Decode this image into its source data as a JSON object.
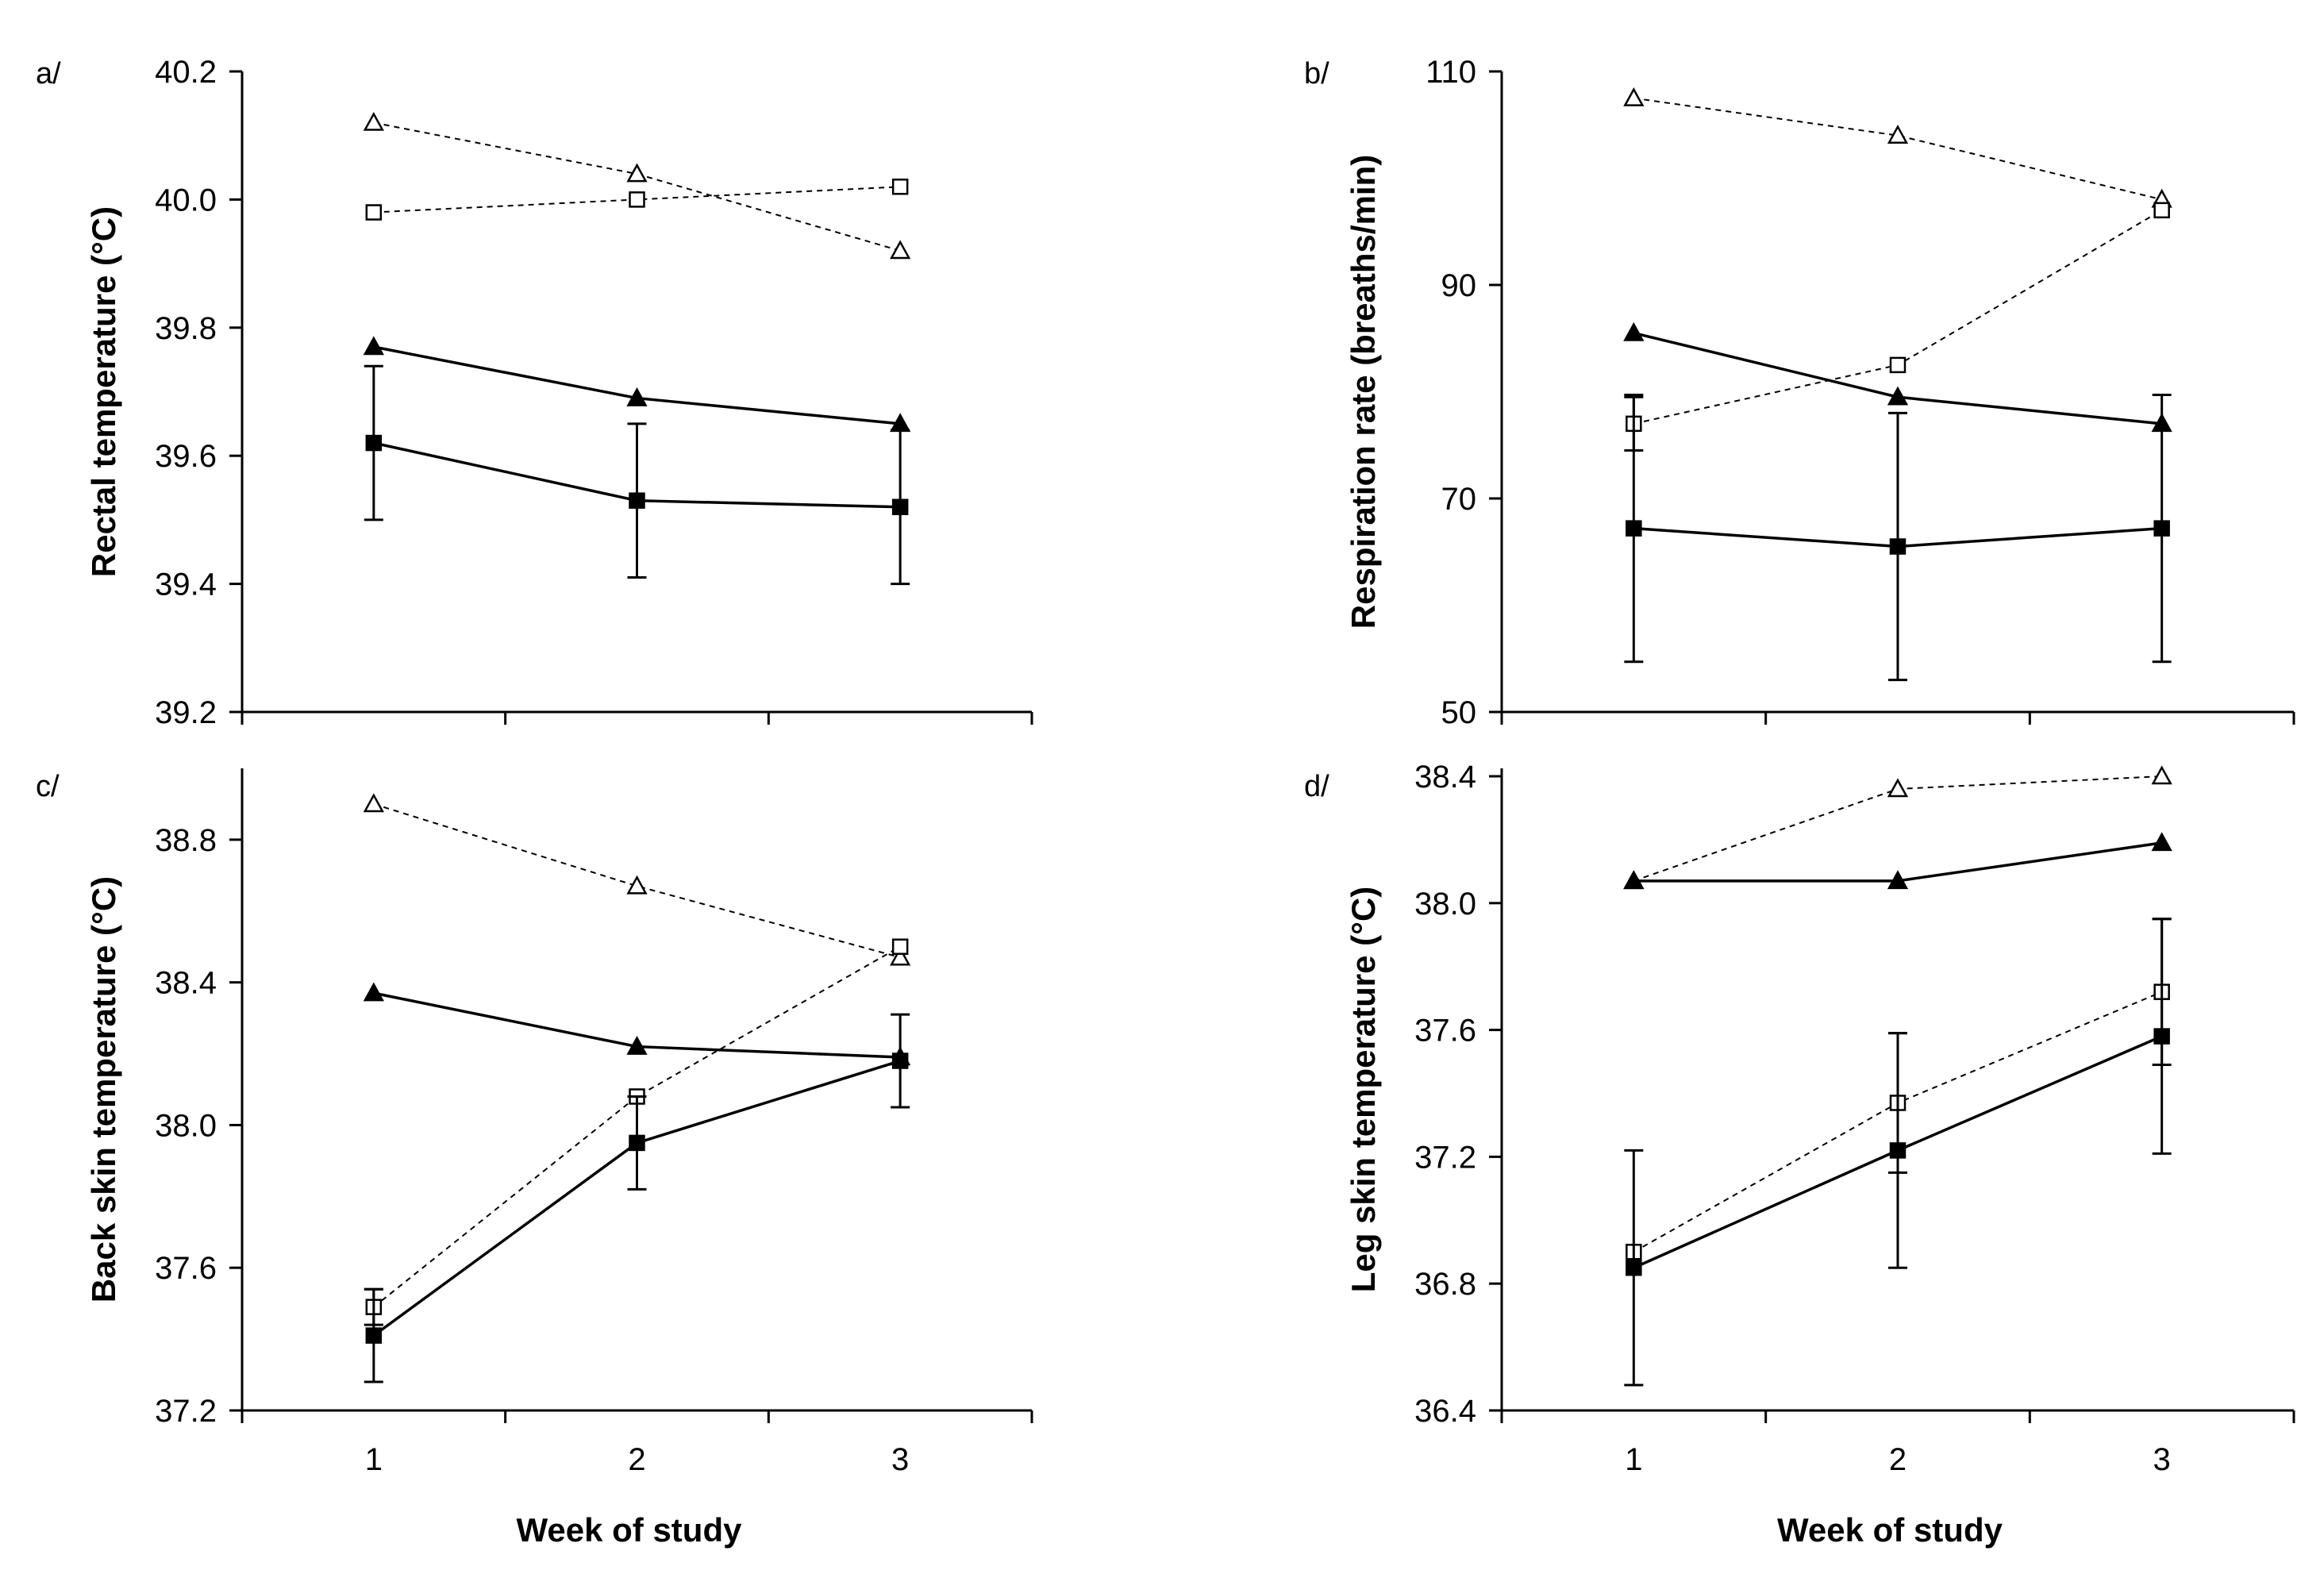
{
  "chart_data": [
    {
      "panel": "a/",
      "type": "line",
      "xlabel": "Week of study",
      "ylabel": "Rectal temperature (°C)",
      "categories": [
        "1",
        "2",
        "3"
      ],
      "ylim": [
        39.2,
        40.2
      ],
      "yticks": [
        "39.2",
        "39.4",
        "39.6",
        "39.8",
        "40.0",
        "40.2"
      ],
      "series": [
        {
          "name": "closed-triangle",
          "marker": "triangle",
          "filled": true,
          "style": "solid",
          "values": [
            39.77,
            39.69,
            39.65
          ]
        },
        {
          "name": "closed-square",
          "marker": "square",
          "filled": true,
          "style": "solid",
          "values": [
            39.62,
            39.53,
            39.52
          ],
          "error": [
            0.12,
            0.12,
            0.12
          ]
        },
        {
          "name": "open-triangle",
          "marker": "triangle",
          "filled": false,
          "style": "dashed",
          "values": [
            40.12,
            40.04,
            39.92
          ]
        },
        {
          "name": "open-square",
          "marker": "square",
          "filled": false,
          "style": "dashed",
          "values": [
            39.98,
            40.0,
            40.02
          ]
        }
      ]
    },
    {
      "panel": "b/",
      "type": "line",
      "xlabel": "Week of study",
      "ylabel": "Respiration rate (breaths/min)",
      "categories": [
        "1",
        "2",
        "3"
      ],
      "ylim": [
        50,
        110
      ],
      "yticks": [
        "50",
        "70",
        "90",
        "110"
      ],
      "series": [
        {
          "name": "closed-triangle",
          "marker": "triangle",
          "filled": true,
          "style": "solid",
          "values": [
            85.5,
            79.5,
            77.0
          ]
        },
        {
          "name": "closed-square",
          "marker": "square",
          "filled": true,
          "style": "solid",
          "values": [
            67.2,
            65.5,
            67.2
          ],
          "error": [
            12.5,
            12.5,
            12.5
          ]
        },
        {
          "name": "open-triangle",
          "marker": "triangle",
          "filled": false,
          "style": "dashed",
          "values": [
            107.5,
            104.0,
            98.0
          ]
        },
        {
          "name": "open-square",
          "marker": "square",
          "filled": false,
          "style": "dashed",
          "values": [
            77.0,
            82.5,
            97.0
          ],
          "error": [
            2.5,
            0,
            0
          ]
        }
      ]
    },
    {
      "panel": "c/",
      "type": "line",
      "xlabel": "Week of study",
      "ylabel": "Back skin temperature (°C)",
      "categories": [
        "1",
        "2",
        "3"
      ],
      "ylim": [
        37.2,
        39.0
      ],
      "yticks": [
        "37.2",
        "37.6",
        "38.0",
        "38.4",
        "38.8"
      ],
      "series": [
        {
          "name": "closed-triangle",
          "marker": "triangle",
          "filled": true,
          "style": "solid",
          "values": [
            38.37,
            38.22,
            38.19
          ]
        },
        {
          "name": "closed-square",
          "marker": "square",
          "filled": true,
          "style": "solid",
          "values": [
            37.41,
            37.95,
            38.18
          ],
          "error": [
            0.13,
            0.13,
            0.13
          ]
        },
        {
          "name": "open-triangle",
          "marker": "triangle",
          "filled": false,
          "style": "dashed",
          "values": [
            38.9,
            38.67,
            38.47
          ]
        },
        {
          "name": "open-square",
          "marker": "square",
          "filled": false,
          "style": "dashed",
          "values": [
            37.49,
            38.08,
            38.5
          ],
          "error": [
            0.05,
            0,
            0
          ]
        }
      ]
    },
    {
      "panel": "d/",
      "type": "line",
      "xlabel": "Week of study",
      "ylabel": "Leg skin temperature (°C)",
      "categories": [
        "1",
        "2",
        "3"
      ],
      "ylim": [
        36.4,
        38.4
      ],
      "yticks": [
        "36.4",
        "36.8",
        "37.2",
        "37.6",
        "38.0",
        "38.4"
      ],
      "series": [
        {
          "name": "closed-triangle",
          "marker": "triangle",
          "filled": true,
          "style": "solid",
          "values": [
            38.07,
            38.07,
            38.19
          ]
        },
        {
          "name": "closed-square",
          "marker": "square",
          "filled": true,
          "style": "solid",
          "values": [
            36.85,
            37.22,
            37.58
          ],
          "error": [
            0.37,
            0.37,
            0.37
          ]
        },
        {
          "name": "open-triangle",
          "marker": "triangle",
          "filled": false,
          "style": "dashed",
          "values": [
            38.07,
            38.36,
            38.4
          ]
        },
        {
          "name": "open-square",
          "marker": "square",
          "filled": false,
          "style": "dashed",
          "values": [
            36.9,
            37.37,
            37.72
          ],
          "error": [
            0,
            0.22,
            0.23
          ]
        }
      ]
    }
  ]
}
